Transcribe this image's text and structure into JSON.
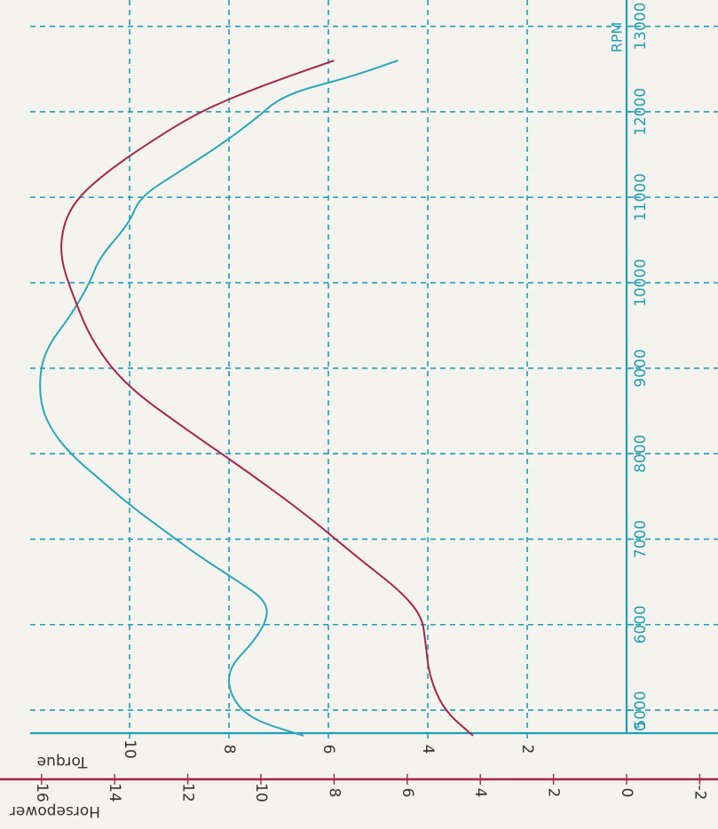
{
  "chart_data": {
    "type": "line",
    "orientation": "rotated-90",
    "x_axis": {
      "label": "RPM",
      "range": [
        4800,
        13200
      ],
      "ticks": [
        5000,
        6000,
        7000,
        8000,
        9000,
        10000,
        11000,
        12000,
        13000
      ],
      "tick_labels": [
        "5000",
        "6000",
        "7000",
        "8000",
        "9000",
        "10000",
        "11000",
        "12000",
        "13000"
      ],
      "first_tick_label": "0",
      "grid": true
    },
    "y_axes": [
      {
        "label": "Torque",
        "range": [
          0,
          12
        ],
        "ticks": [
          2,
          4,
          6,
          8,
          10
        ],
        "tick_labels": [
          "2",
          "4",
          "6",
          "8",
          "10"
        ],
        "color": "#2aa7b8"
      },
      {
        "label": "Horsepower",
        "range": [
          -2,
          16
        ],
        "ticks": [
          -2,
          0,
          2,
          4,
          6,
          8,
          10,
          12,
          14,
          16
        ],
        "tick_labels": [
          "-2",
          "0",
          "2",
          "4",
          "6",
          "8",
          "10",
          "12",
          "14",
          "16"
        ],
        "color": "#a8234c"
      }
    ],
    "series": [
      {
        "name": "Torque",
        "axis": 0,
        "color": "#2aa7b8",
        "x": [
          4700,
          4900,
          5200,
          5500,
          5800,
          6100,
          6300,
          6500,
          6800,
          7100,
          7400,
          7700,
          8000,
          8300,
          8600,
          9000,
          9300,
          9600,
          10000,
          10300,
          10700,
          11000,
          11300,
          11600,
          11900,
          12200,
          12400,
          12600
        ],
        "y": [
          6.5,
          7.6,
          8.0,
          8.0,
          7.5,
          7.2,
          7.3,
          7.8,
          8.6,
          9.3,
          10.0,
          10.6,
          11.2,
          11.6,
          11.8,
          11.8,
          11.6,
          11.2,
          10.8,
          10.6,
          10.0,
          9.8,
          9.0,
          8.2,
          7.5,
          6.9,
          5.6,
          4.6
        ]
      },
      {
        "name": "Horsepower",
        "axis": 1,
        "color": "#a8234c",
        "x": [
          4700,
          5000,
          5400,
          5800,
          6100,
          6400,
          6800,
          7300,
          7800,
          8300,
          8800,
          9300,
          9800,
          10300,
          10700,
          11000,
          11300,
          11600,
          12000,
          12300,
          12600
        ],
        "y": [
          4.2,
          5.0,
          5.4,
          5.5,
          5.6,
          6.2,
          7.4,
          8.8,
          10.4,
          12.1,
          13.7,
          14.6,
          15.1,
          15.5,
          15.4,
          15.0,
          14.2,
          13.2,
          11.7,
          10.0,
          8.0
        ]
      }
    ]
  },
  "colors": {
    "grid": "#1f9fb8",
    "torque_line": "#2aa7b8",
    "horsepower_line": "#a8234c",
    "background": "#f4f3ee"
  }
}
